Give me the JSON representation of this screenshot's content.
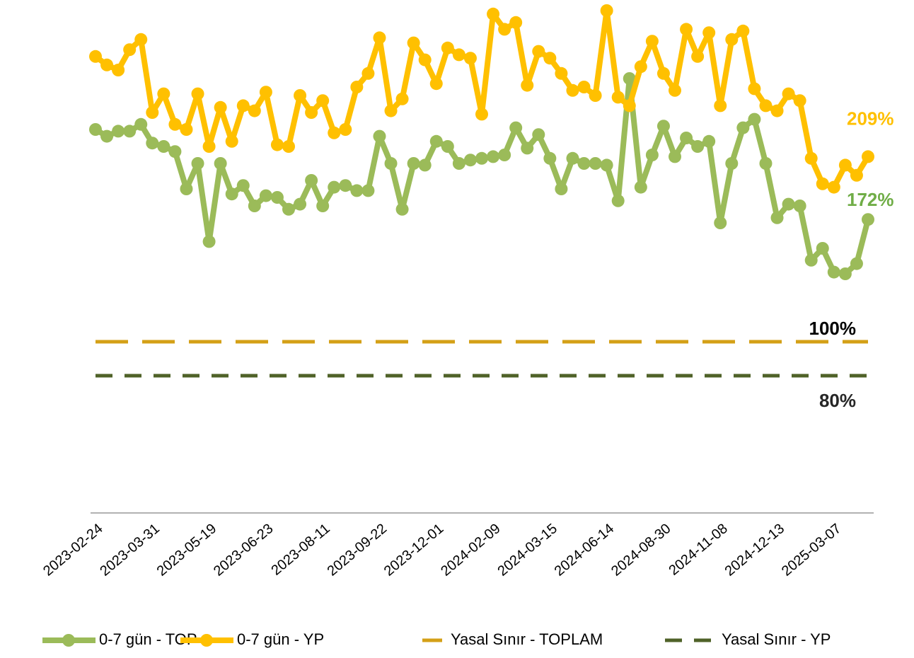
{
  "chart_data": {
    "type": "line",
    "categories": [
      "2023-02-24",
      null,
      null,
      null,
      null,
      "2023-03-31",
      null,
      null,
      null,
      null,
      "2023-05-19",
      null,
      null,
      null,
      null,
      "2023-06-23",
      null,
      null,
      null,
      null,
      "2023-08-11",
      null,
      null,
      null,
      null,
      "2023-09-22",
      null,
      null,
      null,
      null,
      "2023-12-01",
      null,
      null,
      null,
      null,
      "2024-02-09",
      null,
      null,
      null,
      null,
      "2024-03-15",
      null,
      null,
      null,
      null,
      "2024-06-14",
      null,
      null,
      null,
      null,
      "2024-08-30",
      null,
      null,
      null,
      null,
      "2024-11-08",
      null,
      null,
      null,
      null,
      "2024-12-13",
      null,
      null,
      null,
      null,
      "2025-03-07",
      null,
      null,
      null
    ],
    "series": [
      {
        "name": "0-7 gün - TOP",
        "color": "#9bbb59",
        "values": [
          225,
          221,
          224,
          224,
          228,
          217,
          215,
          212,
          190,
          205,
          159,
          205,
          187,
          192,
          180,
          186,
          185,
          178,
          181,
          195,
          180,
          191,
          192,
          189,
          189,
          221,
          205,
          178,
          205,
          204,
          218,
          215,
          205,
          207,
          208,
          209,
          210,
          226,
          214,
          222,
          208,
          190,
          208,
          205,
          205,
          204,
          183,
          255,
          191,
          210,
          227,
          209,
          220,
          215,
          218,
          170,
          205,
          226,
          231,
          205,
          173,
          181,
          180,
          148,
          155,
          141,
          140,
          146,
          172
        ],
        "value_labels": [
          null,
          null,
          null,
          null,
          null,
          null,
          null,
          null,
          null,
          null,
          null,
          null,
          null,
          null,
          null,
          null,
          null,
          null,
          null,
          null,
          null,
          null,
          null,
          null,
          null,
          null,
          null,
          null,
          null,
          null,
          null,
          null,
          null,
          null,
          null,
          null,
          null,
          null,
          null,
          null,
          null,
          null,
          null,
          null,
          null,
          null,
          null,
          null,
          null,
          null,
          null,
          null,
          null,
          null,
          null,
          null,
          null,
          null,
          null,
          null,
          null,
          null,
          null,
          null,
          null,
          null,
          null,
          null,
          "172%"
        ],
        "label_color": "#70ad47"
      },
      {
        "name": "0-7 gün - YP",
        "color": "#ffc000",
        "values": [
          268,
          263,
          260,
          272,
          278,
          235,
          246,
          228,
          225,
          246,
          215,
          238,
          218,
          239,
          236,
          247,
          216,
          215,
          245,
          235,
          242,
          223,
          225,
          250,
          258,
          279,
          236,
          243,
          276,
          266,
          252,
          273,
          269,
          267,
          234,
          293,
          284,
          288,
          251,
          271,
          267,
          258,
          248,
          250,
          245,
          295,
          244,
          239,
          262,
          277,
          258,
          248,
          284,
          268,
          282,
          239,
          278,
          283,
          249,
          239,
          236,
          246,
          242,
          208,
          193,
          191,
          204,
          198,
          209
        ],
        "value_labels": [
          null,
          null,
          null,
          null,
          null,
          null,
          null,
          null,
          null,
          null,
          null,
          null,
          null,
          null,
          null,
          null,
          null,
          null,
          null,
          null,
          null,
          null,
          null,
          null,
          null,
          null,
          null,
          null,
          null,
          null,
          null,
          null,
          null,
          null,
          null,
          null,
          null,
          null,
          null,
          null,
          null,
          null,
          null,
          null,
          null,
          null,
          null,
          null,
          null,
          null,
          null,
          null,
          null,
          null,
          null,
          null,
          null,
          null,
          null,
          null,
          null,
          null,
          null,
          null,
          null,
          null,
          null,
          null,
          "209%"
        ],
        "label_color": "#ffc000"
      }
    ],
    "reference_lines": [
      {
        "name": "Yasal Sınır - TOPLAM",
        "value": 100,
        "label": "100%",
        "color": "#d4a017",
        "label_color": "#000000"
      },
      {
        "name": "Yasal Sınır - YP",
        "value": 80,
        "label": "80%",
        "color": "#4f6228",
        "label_color": "#262626"
      }
    ],
    "ylim": [
      0,
      300
    ]
  }
}
